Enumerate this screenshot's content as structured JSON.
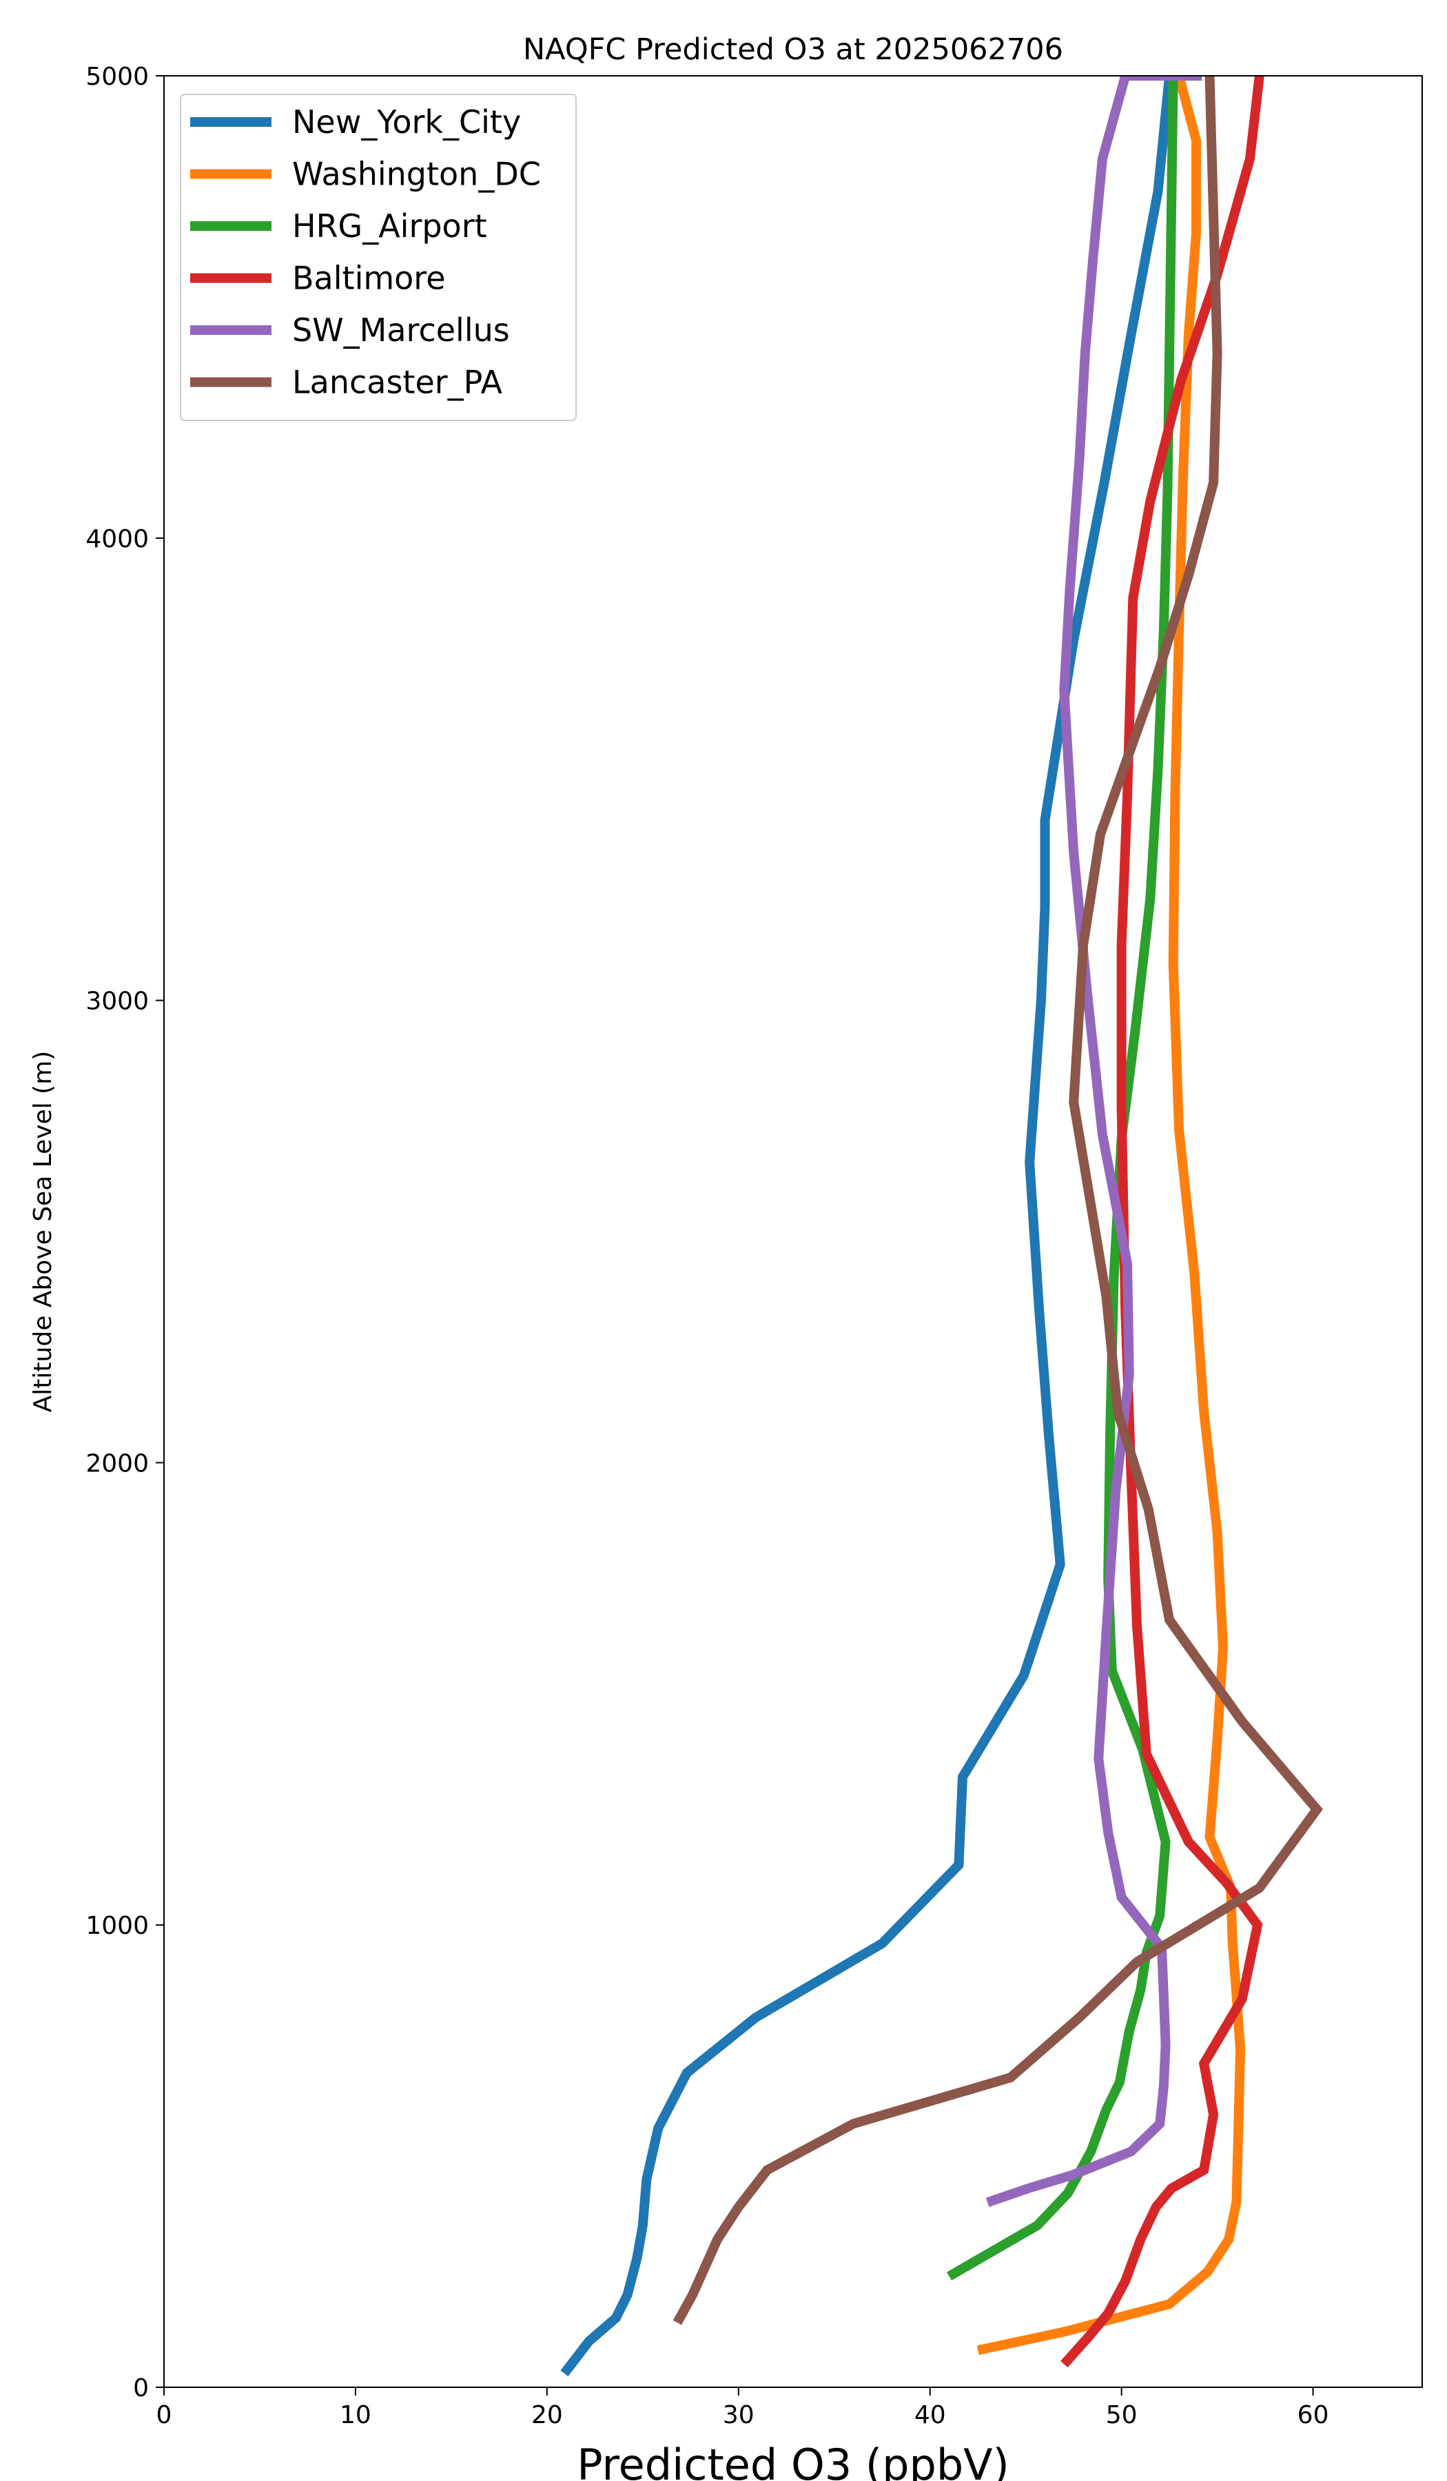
{
  "chart_data": {
    "type": "line",
    "title": "NAQFC Predicted O3 at 2025062706",
    "xlabel": "Predicted O3 (ppbV)",
    "ylabel": "Altitude Above Sea Level (m)",
    "xlim": [
      0,
      65.7
    ],
    "ylim": [
      0,
      5000
    ],
    "xticks": [
      0,
      10,
      20,
      30,
      40,
      50,
      60
    ],
    "yticks": [
      0,
      1000,
      2000,
      3000,
      4000,
      5000
    ],
    "grid": false,
    "legend_position": "upper left",
    "series": [
      {
        "name": "New_York_City",
        "color": "#1f77b4",
        "x": [
          20.9,
          22.2,
          23.6,
          24.2,
          24.7,
          25.0,
          25.2,
          25.8,
          27.3,
          30.9,
          37.5,
          41.5,
          41.7,
          44.9,
          46.8,
          46.2,
          45.7,
          45.2,
          45.8,
          46.0,
          46.0,
          47.5,
          49.1,
          50.5,
          51.9,
          52.5
        ],
        "y": [
          30,
          100,
          150,
          200,
          280,
          350,
          450,
          560,
          680,
          800,
          960,
          1130,
          1320,
          1540,
          1780,
          2060,
          2330,
          2650,
          3000,
          3200,
          3390,
          3780,
          4120,
          4440,
          4750,
          5000
        ]
      },
      {
        "name": "Washington_DC",
        "color": "#ff7f0e",
        "x": [
          42.5,
          47.0,
          52.5,
          54.5,
          55.6,
          56.0,
          56.1,
          56.2,
          56.0,
          55.8,
          55.7,
          54.6,
          55.0,
          55.3,
          55.0,
          54.3,
          53.8,
          53.0,
          52.7,
          52.8,
          53.0,
          53.2,
          53.5,
          53.9,
          53.9,
          53.0
        ],
        "y": [
          80,
          120,
          180,
          250,
          320,
          400,
          560,
          730,
          850,
          960,
          1080,
          1190,
          1400,
          1600,
          1850,
          2110,
          2410,
          2720,
          3080,
          3450,
          3800,
          4120,
          4440,
          4660,
          4860,
          5000
        ]
      },
      {
        "name": "HRG_Airport",
        "color": "#2ca02c",
        "x": [
          41.0,
          43.5,
          45.6,
          47.2,
          48.4,
          49.2,
          49.9,
          50.4,
          51.0,
          51.3,
          52.0,
          52.3,
          51.1,
          49.5,
          49.3,
          49.4,
          49.6,
          50.0,
          50.7,
          51.5,
          51.9,
          52.2,
          52.4,
          52.5,
          52.6,
          52.7
        ],
        "y": [
          240,
          300,
          350,
          420,
          510,
          600,
          660,
          770,
          860,
          940,
          1020,
          1180,
          1380,
          1550,
          1750,
          2060,
          2400,
          2700,
          2930,
          3220,
          3500,
          3800,
          4100,
          4400,
          4700,
          5000
        ]
      },
      {
        "name": "Baltimore",
        "color": "#d62728",
        "x": [
          47.0,
          48.3,
          49.3,
          50.2,
          51.0,
          51.8,
          52.6,
          54.3,
          54.8,
          54.3,
          56.3,
          57.1,
          55.5,
          53.5,
          51.3,
          50.8,
          50.5,
          50.2,
          50.0,
          50.0,
          50.3,
          50.6,
          51.5,
          53.1,
          55.0,
          56.7,
          57.2
        ],
        "y": [
          50,
          110,
          160,
          230,
          320,
          390,
          430,
          470,
          590,
          700,
          840,
          1000,
          1090,
          1180,
          1370,
          1650,
          1980,
          2330,
          2770,
          3120,
          3440,
          3870,
          4080,
          4340,
          4570,
          4820,
          5000
        ]
      },
      {
        "name": "SW_Marcellus",
        "color": "#9467bd",
        "x": [
          43.0,
          45.1,
          47.5,
          50.5,
          52.0,
          52.2,
          52.3,
          52.2,
          52.1,
          50.0,
          49.3,
          48.8,
          49.2,
          49.7,
          50.4,
          50.3,
          49.0,
          48.2,
          47.5,
          47.0,
          47.3,
          47.8,
          48.1,
          48.5,
          49.0,
          50.2,
          52.5,
          54.2
        ],
        "y": [
          400,
          430,
          460,
          510,
          570,
          650,
          740,
          850,
          950,
          1060,
          1200,
          1360,
          1630,
          1940,
          2190,
          2430,
          2710,
          3020,
          3320,
          3670,
          3890,
          4170,
          4400,
          4600,
          4820,
          5000,
          5000,
          5000
        ]
      },
      {
        "name": "Lancaster_PA",
        "color": "#8c564b",
        "x": [
          26.8,
          27.6,
          28.9,
          30.0,
          31.5,
          36.0,
          44.2,
          47.8,
          50.8,
          57.2,
          60.2,
          56.3,
          52.5,
          51.4,
          49.8,
          49.2,
          47.5,
          48.0,
          48.9,
          50.1,
          52.0,
          53.5,
          54.8,
          55.0,
          54.8,
          54.6
        ],
        "y": [
          140,
          200,
          320,
          390,
          470,
          570,
          670,
          800,
          920,
          1080,
          1250,
          1440,
          1660,
          1900,
          2110,
          2360,
          2780,
          3120,
          3360,
          3500,
          3720,
          3920,
          4120,
          4400,
          4700,
          5000
        ]
      }
    ]
  }
}
